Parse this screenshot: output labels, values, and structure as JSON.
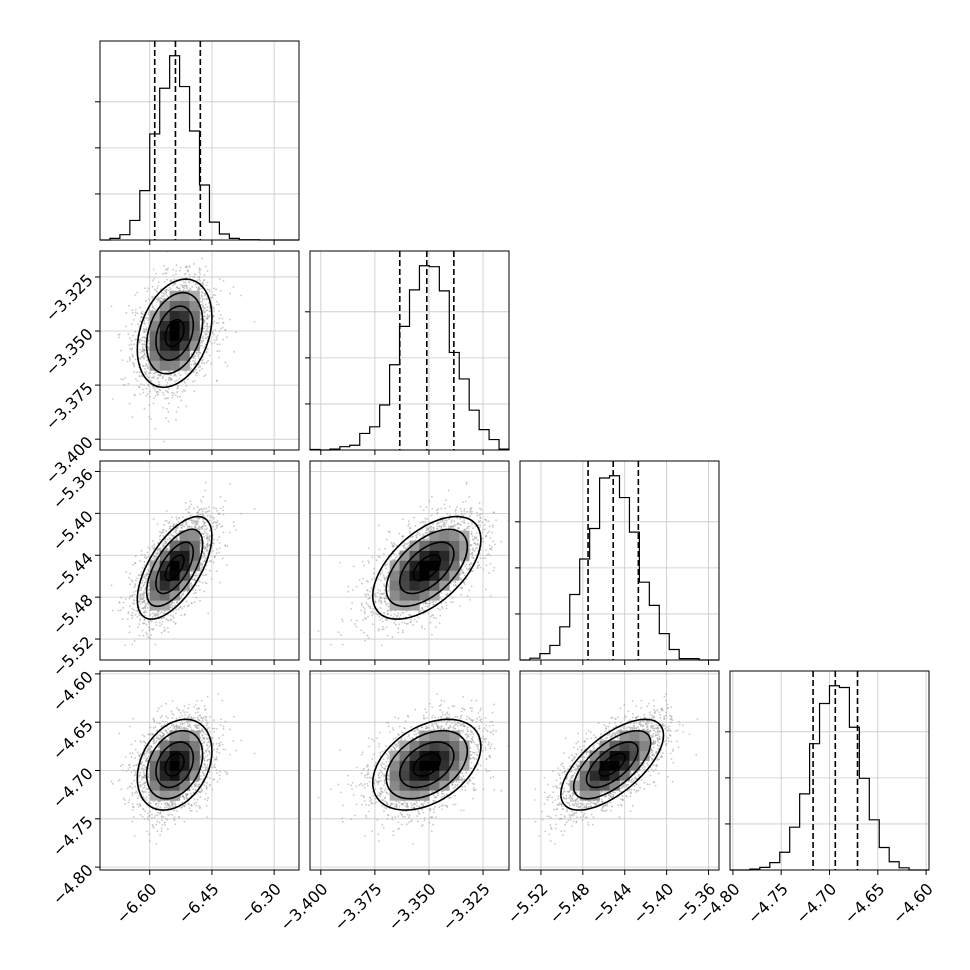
{
  "chart_data": {
    "type": "corner",
    "params": [
      {
        "ticks": [
          -6.6,
          -6.45,
          -6.3
        ],
        "tick_labels": [
          "−6.60",
          "−6.45",
          "−6.30"
        ],
        "range": [
          -6.72,
          -6.24
        ]
      },
      {
        "ticks": [
          -3.4,
          -3.375,
          -3.35,
          -3.325
        ],
        "tick_labels": [
          "−3.400",
          "−3.375",
          "−3.350",
          "−3.325"
        ],
        "range": [
          -3.405,
          -3.313
        ]
      },
      {
        "ticks": [
          -5.52,
          -5.48,
          -5.44,
          -5.4,
          -5.36
        ],
        "tick_labels": [
          "−5.52",
          "−5.48",
          "−5.44",
          "−5.40",
          "−5.36"
        ],
        "range": [
          -5.54,
          -5.35
        ]
      },
      {
        "ticks": [
          -4.8,
          -4.75,
          -4.7,
          -4.65,
          -4.6
        ],
        "tick_labels": [
          "−4.80",
          "−4.75",
          "−4.70",
          "−4.65",
          "−4.60"
        ],
        "range": [
          -4.803,
          -4.597
        ]
      }
    ],
    "means": [
      -6.54,
      -3.351,
      -5.452,
      -4.694
    ],
    "sigmas": [
      0.045,
      0.0125,
      0.0245,
      0.0235
    ],
    "quantiles": [
      [
        -6.588,
        -6.538,
        -6.478
      ],
      [
        -3.3635,
        -3.351,
        -3.3385
      ],
      [
        -5.475,
        -5.451,
        -5.427
      ],
      [
        -4.717,
        -4.694,
        -4.671
      ]
    ],
    "correlations": [
      [
        1.0,
        0.3,
        0.62,
        0.3
      ],
      [
        0.3,
        1.0,
        0.55,
        0.4
      ],
      [
        0.62,
        0.55,
        1.0,
        0.65
      ],
      [
        0.3,
        0.4,
        0.65,
        1.0
      ]
    ],
    "hist_bins": 20,
    "contour_levels_sigma": [
      0.5,
      1.0,
      1.5,
      2.0
    ],
    "grid": true
  }
}
